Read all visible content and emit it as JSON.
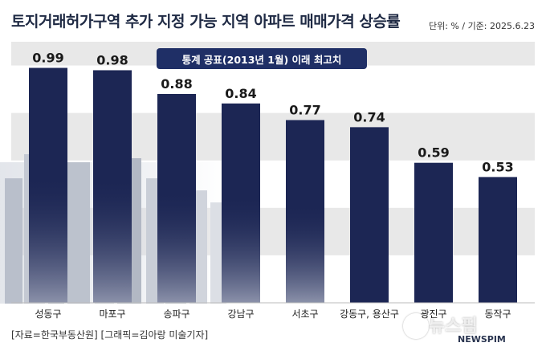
{
  "header": {
    "title": "토지거래허가구역 추가 지정 가능 지역 아파트 매매가격 상승률",
    "unit_note": "단위: % / 기준: 2025.6.23"
  },
  "badge": {
    "text": "통계 공표(2013년 1월) 이래 최고치"
  },
  "footer": {
    "source": "[자료=한국부동산원] [그래픽=김아랑 미술기자]"
  },
  "watermark": {
    "text": "뉴스핌",
    "sub": "NEWSPIM"
  },
  "colors": {
    "bar": "#1c2654",
    "band": "#e8e8e8",
    "badge": "#1f2f66",
    "title": "#1f2a44"
  },
  "chart_data": {
    "type": "bar",
    "title": "토지거래허가구역 추가 지정 가능 지역 아파트 매매가격 상승률",
    "categories": [
      "성동구",
      "마포구",
      "송파구",
      "강남구",
      "서초구",
      "강동구, 용산구",
      "광진구",
      "동작구"
    ],
    "values": [
      0.99,
      0.98,
      0.88,
      0.84,
      0.77,
      0.74,
      0.59,
      0.53
    ],
    "value_labels": [
      "0.99",
      "0.98",
      "0.88",
      "0.84",
      "0.77",
      "0.74",
      "0.59",
      "0.53"
    ],
    "xlabel": "",
    "ylabel": "",
    "ylim": [
      0,
      1.1
    ],
    "grid": "horizontal bands",
    "legend": "none"
  }
}
